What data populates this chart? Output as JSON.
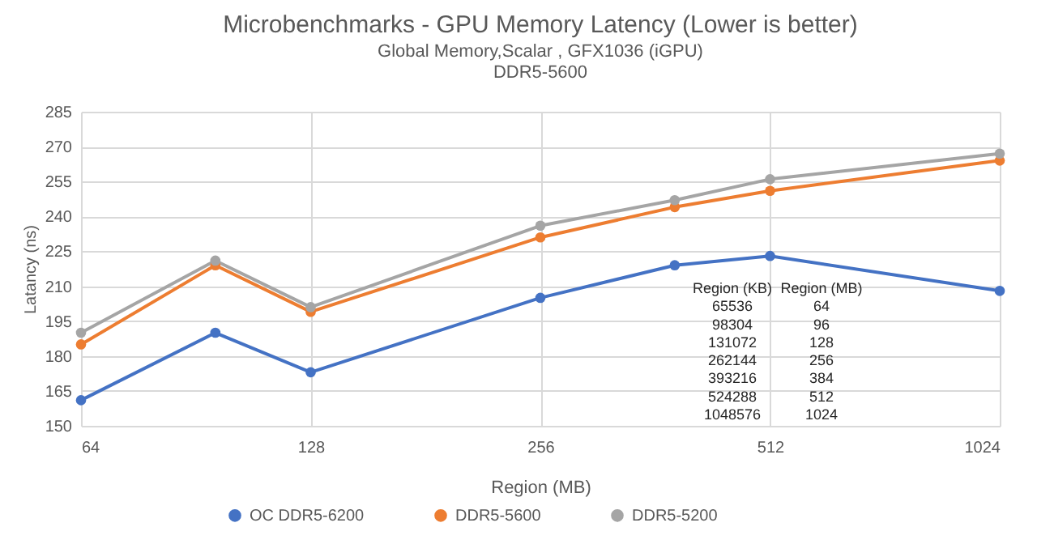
{
  "chart_data": {
    "type": "line",
    "title": "Microbenchmarks - GPU Memory Latency  (Lower is better)",
    "subtitle": "Global Memory,Scalar , GFX1036 (iGPU)\nDDR5-5600",
    "xlabel": "Region (MB)",
    "ylabel": "Latancy (ns)",
    "x": [
      64,
      96,
      128,
      256,
      384,
      512,
      1024
    ],
    "series": [
      {
        "name": "OC DDR5-6200",
        "color": "#4472c4",
        "values": [
          161,
          190,
          173,
          205,
          219,
          223,
          208
        ]
      },
      {
        "name": "DDR5-5600",
        "color": "#ed7d31",
        "values": [
          185,
          219,
          199,
          231,
          244,
          251,
          264
        ]
      },
      {
        "name": "DDR5-5200",
        "color": "#a5a5a5",
        "values": [
          190,
          221,
          201,
          236,
          247,
          256,
          267
        ]
      }
    ],
    "log": "x",
    "xlim": [
      64,
      1024
    ],
    "xticks": [
      64,
      128,
      256,
      512,
      1024
    ],
    "ylim": [
      150,
      285
    ],
    "yticks": [
      150,
      165,
      180,
      195,
      210,
      225,
      240,
      255,
      270,
      285
    ],
    "grid": true,
    "legend": "bottom",
    "marker": "circle",
    "line_style": "solid",
    "annotations": [
      "Region (KB)",
      "Region (MB)",
      "65536",
      "64",
      "98304",
      "96",
      "131072",
      "128",
      "262144",
      "256",
      "393216",
      "384",
      "524288",
      "512",
      "1048576",
      "1024"
    ]
  }
}
